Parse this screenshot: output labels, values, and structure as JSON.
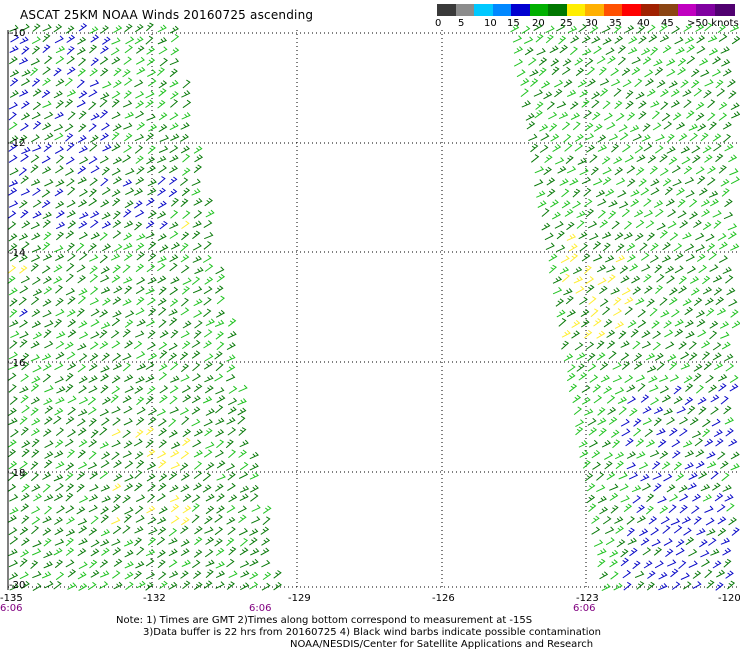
{
  "title": "ASCAT 25KM NOAA Winds 20160725 ascending",
  "legend": {
    "labels": [
      "0",
      "5",
      "10",
      "15",
      "20",
      "25",
      "30",
      "35",
      "40",
      "45",
      ">50 knots"
    ],
    "colors": [
      "#3a3a3a",
      "#8c8c8c",
      "#00c8ff",
      "#0088ff",
      "#0000d0",
      "#00b000",
      "#007800",
      "#ffee00",
      "#ffb000",
      "#ff5000",
      "#ff0000",
      "#a02000",
      "#8b4513",
      "#c000c0",
      "#8000a0",
      "#500070"
    ]
  },
  "map": {
    "lat_labels": [
      "-10",
      "-12",
      "-14",
      "-16",
      "-18",
      "-20"
    ],
    "lon_labels": [
      "-135",
      "-132",
      "-129",
      "-126",
      "-123",
      "-120"
    ],
    "time_labels": [
      "6:06",
      "6:06",
      "6:06"
    ],
    "colors": {
      "green_light": "#22c322",
      "green_dark": "#0a7a0a",
      "blue": "#0a0ac8",
      "yellow": "#ffee33"
    }
  },
  "notes": {
    "line1": "Note: 1) Times are GMT 2)Times along bottom correspond to measurement at -15S",
    "line2": "3)Data buffer is 22 hrs from 20160725 4) Black wind barbs indicate possible contamination",
    "line3": "NOAA/NESDIS/Center for Satellite Applications and Research"
  }
}
